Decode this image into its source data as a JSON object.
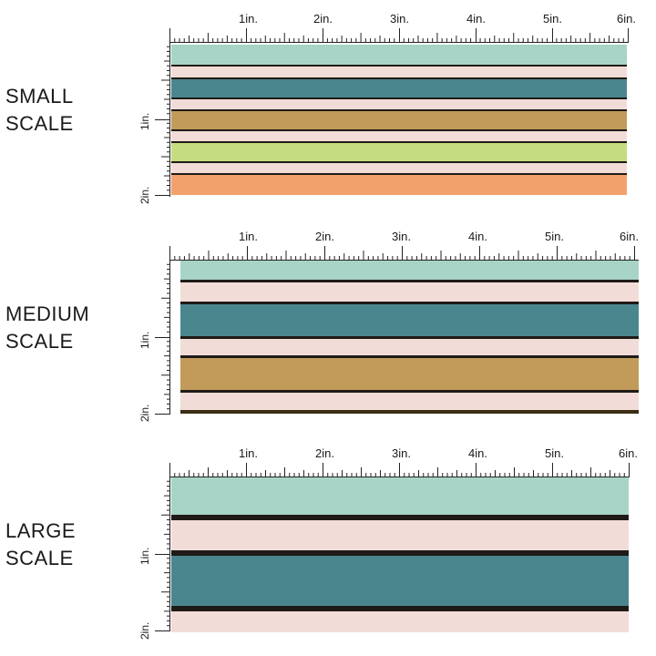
{
  "panels": [
    {
      "title_line1": "SMALL",
      "title_line2": "SCALE",
      "h_labels": [
        "1in.",
        "2in.",
        "3in.",
        "4in.",
        "5in.",
        "6in."
      ],
      "v_labels": [
        "1in.",
        "2in."
      ],
      "stripes": [
        "mint",
        "pink",
        "teal",
        "pink",
        "mustard",
        "pink",
        "lime",
        "pink",
        "orange"
      ]
    },
    {
      "title_line1": "MEDIUM",
      "title_line2": "SCALE",
      "h_labels": [
        "1in.",
        "2in.",
        "3in.",
        "4in.",
        "5in.",
        "6in."
      ],
      "v_labels": [
        "1in.",
        "2in."
      ],
      "stripes": [
        "mint",
        "pink",
        "teal",
        "pink",
        "mustard",
        "pink"
      ]
    },
    {
      "title_line1": "LARGE",
      "title_line2": "SCALE",
      "h_labels": [
        "1in.",
        "2in.",
        "3in.",
        "4in.",
        "5in.",
        "6in."
      ],
      "v_labels": [
        "1in.",
        "2in."
      ],
      "stripes": [
        "mint",
        "pink",
        "teal",
        "pink"
      ]
    }
  ],
  "colors": {
    "mint": "#a8d4c7",
    "pink": "#f2dcd8",
    "teal": "#4a868e",
    "mustard": "#c29a5a",
    "lime": "#c5dc7f",
    "orange": "#f2a16c",
    "line": "#1f1a17",
    "ruler": "#222222"
  }
}
